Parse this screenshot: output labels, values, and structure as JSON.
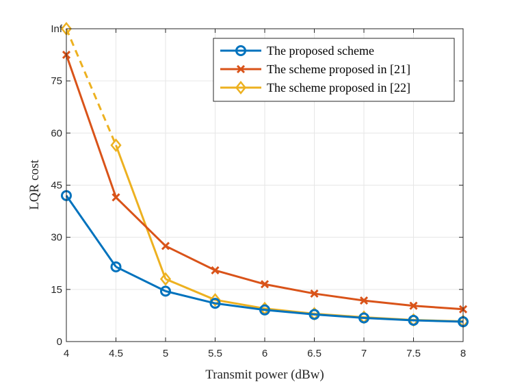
{
  "chart_data": {
    "type": "line",
    "xlabel": "Transmit power (dBw)",
    "ylabel": "LQR cost",
    "xlim": [
      4,
      8
    ],
    "ylim": [
      0,
      90
    ],
    "x_ticks": [
      4,
      4.5,
      5,
      5.5,
      6,
      6.5,
      7,
      7.5,
      8
    ],
    "x_tick_labels": [
      "4",
      "4.5",
      "5",
      "5.5",
      "6",
      "6.5",
      "7",
      "7.5",
      "8"
    ],
    "y_ticks": [
      0,
      15,
      30,
      45,
      60,
      75,
      90
    ],
    "y_tick_labels": [
      "0",
      "15",
      "30",
      "45",
      "60",
      "75",
      "Inf"
    ],
    "grid": true,
    "legend_position": "top-right",
    "x": [
      4,
      4.5,
      5,
      5.5,
      6,
      6.5,
      7,
      7.5,
      8
    ],
    "series": [
      {
        "name": "The proposed scheme",
        "color": "#0072BD",
        "marker": "circle",
        "values": [
          42,
          21.5,
          14.5,
          11,
          9.1,
          7.8,
          6.8,
          6.1,
          5.7
        ]
      },
      {
        "name": "The scheme proposed in [21]",
        "color": "#D95319",
        "marker": "x",
        "values": [
          82.5,
          41.5,
          27.5,
          20.5,
          16.5,
          13.8,
          11.8,
          10.3,
          9.3
        ]
      },
      {
        "name": "The scheme proposed in [22]",
        "color": "#EDB120",
        "marker": "diamond",
        "values": [
          "Inf",
          56.5,
          18,
          12,
          9.5,
          8,
          7,
          6.2,
          5.8
        ],
        "inf_segment_style": "dashed"
      }
    ]
  }
}
